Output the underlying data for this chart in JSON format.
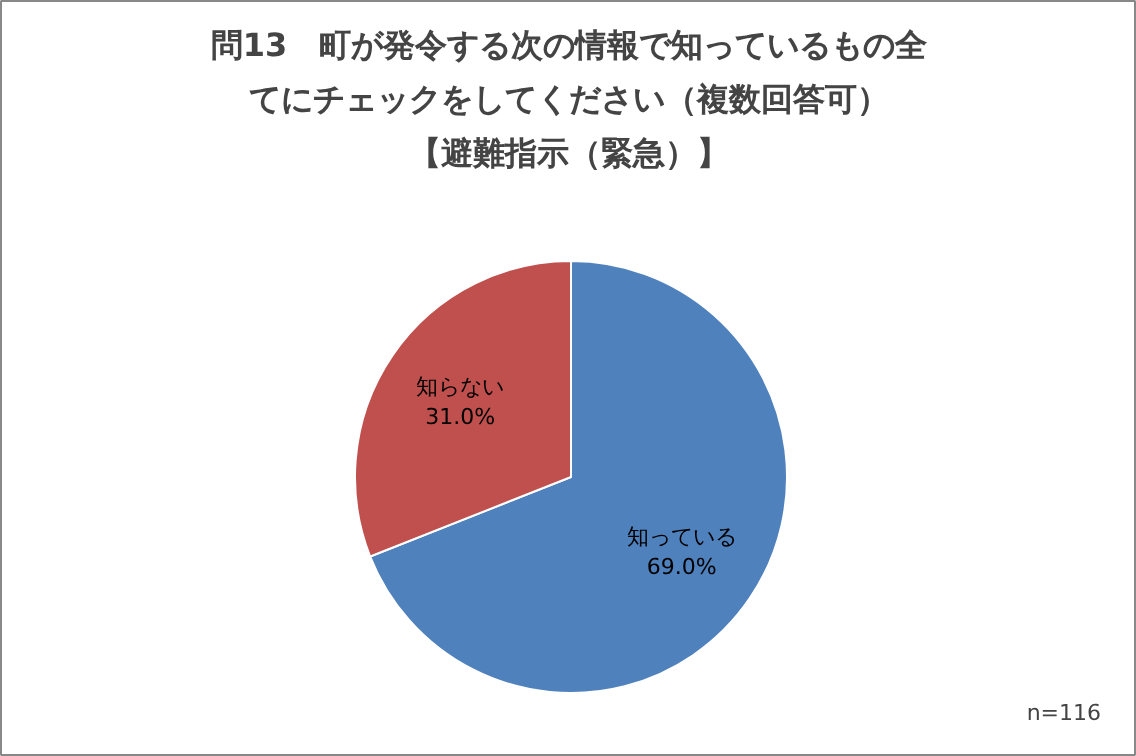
{
  "chart_data": {
    "type": "pie",
    "title": "問13　町が発令する次の情報で知っているもの全てにチェックをしてください（複数回答可）【避難指示（緊急）】",
    "categories": [
      "知っている",
      "知らない"
    ],
    "values": [
      69.0,
      31.0
    ],
    "colors": [
      "#4f81bd",
      "#c0504d"
    ],
    "value_labels": [
      "69.0%",
      "31.0%"
    ],
    "annotations": [
      "n=116"
    ]
  }
}
